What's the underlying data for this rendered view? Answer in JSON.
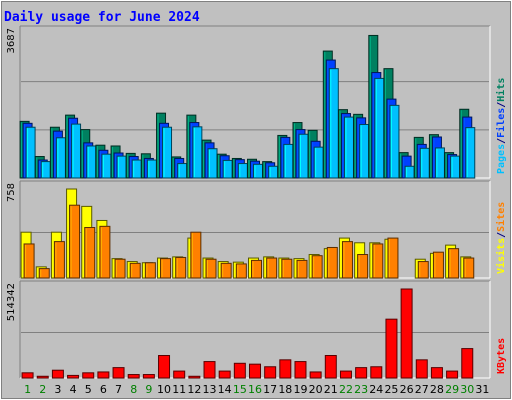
{
  "chart_data": {
    "type": "bar",
    "title": "Daily usage for June 2024",
    "categories": [
      "1",
      "2",
      "3",
      "4",
      "5",
      "6",
      "7",
      "8",
      "9",
      "10",
      "11",
      "12",
      "13",
      "14",
      "15",
      "16",
      "17",
      "18",
      "19",
      "20",
      "21",
      "22",
      "23",
      "24",
      "25",
      "26",
      "27",
      "28",
      "29",
      "30",
      "31"
    ],
    "weekend_days": [
      "1",
      "2",
      "8",
      "9",
      "15",
      "16",
      "22",
      "23",
      "29",
      "30"
    ],
    "panels": [
      {
        "id": "traffic",
        "axis_max_label": "3687",
        "ymax": 3687,
        "right_labels": [
          {
            "text": "Pages",
            "color": "#00c0ff"
          },
          {
            "text": "/",
            "color": "#000080"
          },
          {
            "text": "Files",
            "color": "#0040ff"
          },
          {
            "text": "/",
            "color": "#000080"
          },
          {
            "text": "Hits",
            "color": "#008060"
          }
        ],
        "series": [
          {
            "name": "Hits",
            "color": "#008060",
            "values": [
              1450,
              550,
              1300,
              1610,
              1240,
              840,
              820,
              630,
              620,
              1660,
              540,
              1610,
              970,
              610,
              500,
              480,
              420,
              1090,
              1420,
              1220,
              3250,
              1750,
              1630,
              3650,
              2800,
              650,
              1040,
              1110,
              650,
              1760,
              0
            ]
          },
          {
            "name": "Files",
            "color": "#0040ff",
            "values": [
              1400,
              460,
              1200,
              1530,
              900,
              710,
              640,
              550,
              500,
              1400,
              500,
              1420,
              900,
              570,
              470,
              430,
              390,
              1040,
              1240,
              940,
              3020,
              1650,
              1540,
              2700,
              2020,
              560,
              860,
              1050,
              600,
              1560,
              0
            ]
          },
          {
            "name": "Pages",
            "color": "#00c0ff",
            "values": [
              1300,
              420,
              1030,
              1380,
              820,
              610,
              560,
              460,
              460,
              1300,
              370,
              1310,
              750,
              450,
              370,
              350,
              300,
              860,
              1120,
              790,
              2800,
              1560,
              1370,
              2550,
              1860,
              300,
              760,
              770,
              560,
              1290,
              0
            ]
          }
        ]
      },
      {
        "id": "visitors",
        "axis_max_label": "758",
        "ymax": 758,
        "right_labels": [
          {
            "text": "Visits",
            "color": "#ffff00"
          },
          {
            "text": "/",
            "color": "#000080"
          },
          {
            "text": "Sites",
            "color": "#ff8000"
          }
        ],
        "series": [
          {
            "name": "Visits",
            "color": "#ffff00",
            "values": [
              390,
              95,
              390,
              758,
              610,
              490,
              165,
              140,
              130,
              170,
              180,
              340,
              170,
              140,
              135,
              170,
              180,
              170,
              165,
              200,
              250,
              340,
              300,
              300,
              330,
              0,
              160,
              210,
              280,
              180,
              0
            ]
          },
          {
            "name": "Sites",
            "color": "#ff8000",
            "values": [
              290,
              80,
              310,
              620,
              430,
              440,
              160,
              125,
              130,
              165,
              175,
              390,
              160,
              125,
              120,
              150,
              170,
              160,
              150,
              190,
              260,
              310,
              200,
              290,
              340,
              0,
              140,
              220,
              250,
              170,
              0
            ]
          }
        ]
      },
      {
        "id": "kbytes",
        "axis_max_label": "514342",
        "ymax": 514342,
        "right_labels": [
          {
            "text": "KBytes",
            "color": "#ff0000"
          }
        ],
        "series": [
          {
            "name": "KBytes",
            "color": "#ff0000",
            "values": [
              30000,
              10000,
              45000,
              15000,
              30000,
              35000,
              60000,
              20000,
              20000,
              130000,
              40000,
              10000,
              95000,
              40000,
              85000,
              80000,
              65000,
              105000,
              95000,
              35000,
              130000,
              40000,
              60000,
              65000,
              340000,
              514342,
              105000,
              60000,
              40000,
              170000,
              0
            ]
          }
        ]
      }
    ]
  }
}
